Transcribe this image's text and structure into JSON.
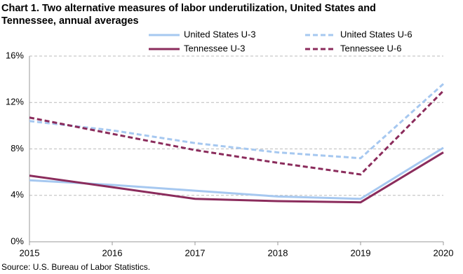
{
  "chart_data": {
    "type": "line",
    "title": "Chart 1. Two alternative measures of labor underutilization, United States and Tennessee, annual averages",
    "source": "Source: U.S. Bureau of Labor Statistics.",
    "x": [
      2015,
      2016,
      2017,
      2018,
      2019,
      2020
    ],
    "xlim": [
      2015,
      2020
    ],
    "xticks": [
      2015,
      2016,
      2017,
      2018,
      2019,
      2020
    ],
    "ylim": [
      0,
      16
    ],
    "yticks": [
      {
        "value": 0,
        "label": "0%"
      },
      {
        "value": 4,
        "label": "4%"
      },
      {
        "value": 8,
        "label": "8%"
      },
      {
        "value": 12,
        "label": "12%"
      },
      {
        "value": 16,
        "label": "16%"
      }
    ],
    "grid": true,
    "series": [
      {
        "name": "United States U-3",
        "color": "#a6c8f0",
        "style": "solid",
        "values": [
          5.3,
          4.9,
          4.4,
          3.9,
          3.7,
          8.1
        ]
      },
      {
        "name": "United States U-6",
        "color": "#a6c8f0",
        "style": "dashed",
        "values": [
          10.4,
          9.6,
          8.5,
          7.7,
          7.2,
          13.6
        ]
      },
      {
        "name": "Tennessee U-3",
        "color": "#8b2c5c",
        "style": "solid",
        "values": [
          5.7,
          4.7,
          3.7,
          3.5,
          3.4,
          7.7
        ]
      },
      {
        "name": "Tennessee U-6",
        "color": "#8b2c5c",
        "style": "dashed",
        "values": [
          10.7,
          9.3,
          7.9,
          6.8,
          5.8,
          13.0
        ]
      }
    ]
  }
}
